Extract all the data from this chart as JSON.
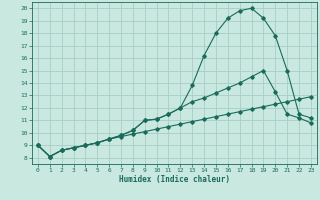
{
  "title": "",
  "xlabel": "Humidex (Indice chaleur)",
  "ylabel": "",
  "xlim": [
    -0.5,
    23.5
  ],
  "ylim": [
    7.5,
    20.5
  ],
  "xticks": [
    0,
    1,
    2,
    3,
    4,
    5,
    6,
    7,
    8,
    9,
    10,
    11,
    12,
    13,
    14,
    15,
    16,
    17,
    18,
    19,
    20,
    21,
    22,
    23
  ],
  "yticks": [
    8,
    9,
    10,
    11,
    12,
    13,
    14,
    15,
    16,
    17,
    18,
    19,
    20
  ],
  "bg_color": "#c8e8e0",
  "grid_color": "#a8ccc4",
  "line_color": "#1a6b5a",
  "line1_x": [
    0,
    1,
    2,
    3,
    4,
    5,
    6,
    7,
    8,
    9,
    10,
    11,
    12,
    13,
    14,
    15,
    16,
    17,
    18,
    19,
    20,
    21,
    22,
    23
  ],
  "line1_y": [
    9.0,
    8.1,
    8.6,
    8.8,
    9.0,
    9.2,
    9.5,
    9.8,
    10.2,
    11.0,
    11.1,
    11.5,
    12.0,
    13.8,
    16.2,
    18.0,
    19.2,
    19.8,
    20.0,
    19.2,
    17.8,
    15.0,
    11.5,
    11.2
  ],
  "line2_x": [
    0,
    1,
    2,
    3,
    4,
    5,
    6,
    7,
    8,
    9,
    10,
    11,
    12,
    13,
    14,
    15,
    16,
    17,
    18,
    19,
    20,
    21,
    22,
    23
  ],
  "line2_y": [
    9.0,
    8.1,
    8.6,
    8.8,
    9.0,
    9.2,
    9.5,
    9.8,
    10.2,
    11.0,
    11.1,
    11.5,
    12.0,
    12.5,
    12.8,
    13.2,
    13.6,
    14.0,
    14.5,
    15.0,
    13.3,
    11.5,
    11.2,
    10.8
  ],
  "line3_x": [
    0,
    1,
    2,
    3,
    4,
    5,
    6,
    7,
    8,
    9,
    10,
    11,
    12,
    13,
    14,
    15,
    16,
    17,
    18,
    19,
    20,
    21,
    22,
    23
  ],
  "line3_y": [
    9.0,
    8.1,
    8.6,
    8.8,
    9.0,
    9.2,
    9.5,
    9.7,
    9.9,
    10.1,
    10.3,
    10.5,
    10.7,
    10.9,
    11.1,
    11.3,
    11.5,
    11.7,
    11.9,
    12.1,
    12.3,
    12.5,
    12.7,
    12.9
  ],
  "marker": "D",
  "markersize": 1.8,
  "linewidth": 0.8
}
